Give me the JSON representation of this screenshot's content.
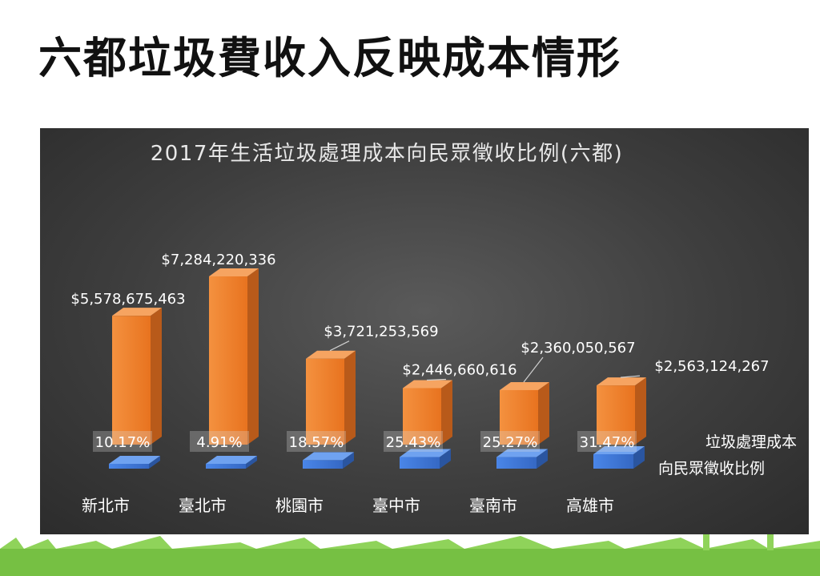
{
  "slide": {
    "title": "六都垃圾費收入反映成本情形"
  },
  "chart_data": {
    "type": "bar",
    "title": "2017年生活垃圾處理成本向民眾徵收比例(六都)",
    "categories": [
      "新北市",
      "臺北市",
      "桃園市",
      "臺中市",
      "臺南市",
      "高雄市"
    ],
    "series": [
      {
        "name": "垃圾處理成本",
        "values": [
          5578675463,
          7284220336,
          3721253569,
          2446660616,
          2360050567,
          2563124267
        ],
        "labels": [
          "$5,578,675,463",
          "$7,284,220,336",
          "$3,721,253,569",
          "$2,446,660,616",
          "$2,360,050,567",
          "$2,563,124,267"
        ],
        "color": "#f07f2e"
      },
      {
        "name": "向民眾徵收比例",
        "values": [
          10.17,
          4.91,
          18.57,
          25.43,
          25.27,
          31.47
        ],
        "labels": [
          "10.17%",
          "4.91%",
          "18.57%",
          "25.43%",
          "25.27%",
          "31.47%"
        ],
        "color": "#3e78d8"
      }
    ],
    "legend_position": "right",
    "grid": false
  }
}
